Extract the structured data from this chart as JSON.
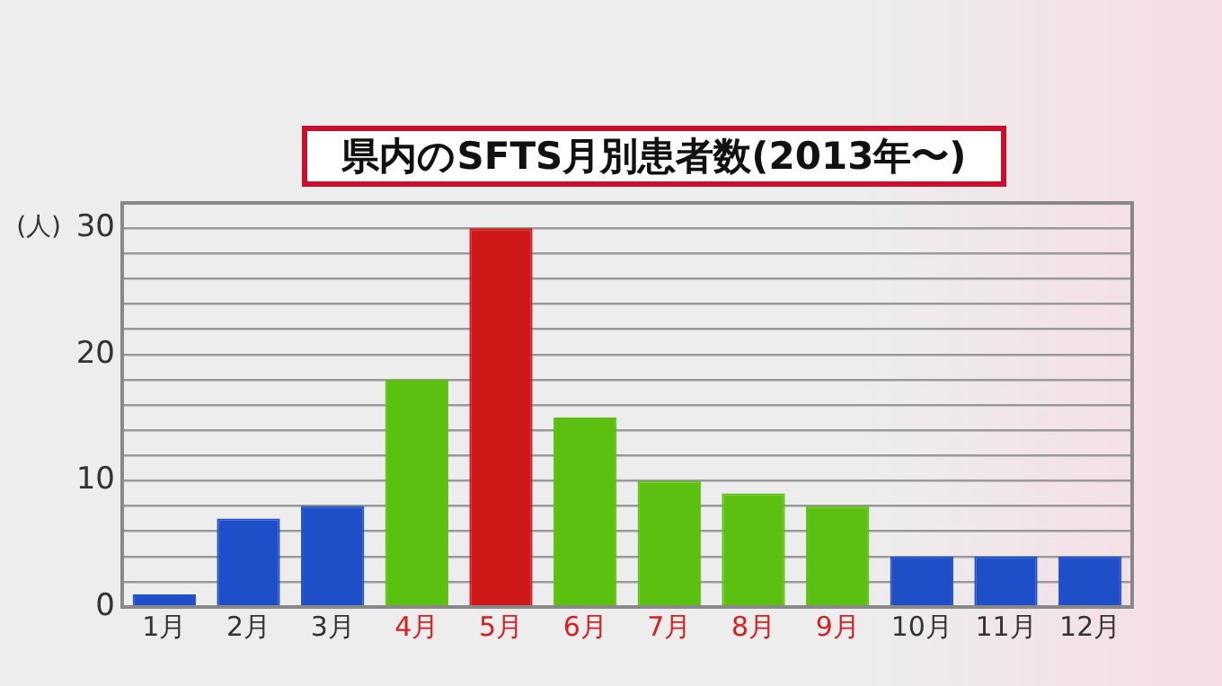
{
  "chart_data": {
    "type": "bar",
    "title": "県内のSFTS月別患者数(2013年〜)",
    "ylabel": "(人)",
    "categories": [
      "1月",
      "2月",
      "3月",
      "4月",
      "5月",
      "6月",
      "7月",
      "8月",
      "9月",
      "10月",
      "11月",
      "12月"
    ],
    "values": [
      1,
      7,
      8,
      18,
      30,
      15,
      10,
      9,
      8,
      4,
      4,
      4
    ],
    "colors": [
      "#1f4fc8",
      "#1f4fc8",
      "#1f4fc8",
      "#5cc010",
      "#d01818",
      "#5cc010",
      "#5cc010",
      "#5cc010",
      "#5cc010",
      "#1f4fc8",
      "#1f4fc8",
      "#1f4fc8"
    ],
    "ylim": [
      0,
      32
    ],
    "yticks": [
      0,
      {
        "value": 2,
        "label": null
      },
      {
        "value": 4,
        "label": null
      },
      {
        "value": 6,
        "label": null
      },
      {
        "value": 8,
        "label": null
      },
      10,
      {
        "value": 12,
        "label": null
      },
      {
        "value": 14,
        "label": null
      },
      {
        "value": 16,
        "label": null
      },
      {
        "value": 18,
        "label": null
      },
      20,
      {
        "value": 22,
        "label": null
      },
      {
        "value": 24,
        "label": null
      },
      {
        "value": 26,
        "label": null
      },
      {
        "value": 28,
        "label": null
      },
      30
    ],
    "grid": "y"
  }
}
